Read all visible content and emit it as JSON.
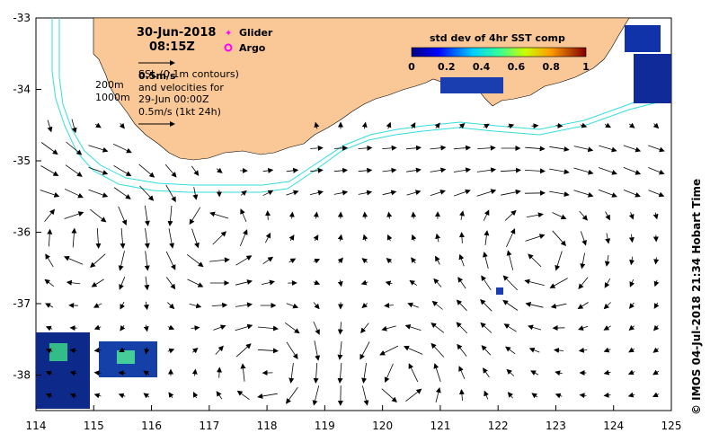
{
  "map": {
    "date_line": "30-Jun-2018",
    "time_line": "08:15Z",
    "speed_note": "0.5m/s",
    "contour_note": "SSL (0.1m contours)",
    "velocity_line1": "and velocities for",
    "velocity_line2": "29-Jun 00:00Z",
    "velocity_scale": "0.5m/s (1kt 24h)",
    "depth_200": "200m",
    "depth_1000": "1000m",
    "legend": {
      "glider": "Glider",
      "argo": "Argo",
      "glider_color": "#ff00ff",
      "argo_color": "#ff00ff"
    },
    "colorbar": {
      "title": "std dev of 4hr SST comp",
      "ticks": [
        "0",
        "0.2",
        "0.4",
        "0.6",
        "0.8",
        "1"
      ]
    },
    "credit": "© IMOS 04-Jul-2018 21:34 Hobart Time",
    "lon_ticks": [
      "114",
      "115",
      "116",
      "117",
      "118",
      "119",
      "120",
      "121",
      "122",
      "123",
      "124",
      "125"
    ],
    "lat_ticks": [
      "-33",
      "-34",
      "-35",
      "-36",
      "-37",
      "-38"
    ],
    "colors": {
      "land": "#f9c896",
      "isobath": "#33dddd",
      "arrow": "#000000"
    }
  }
}
